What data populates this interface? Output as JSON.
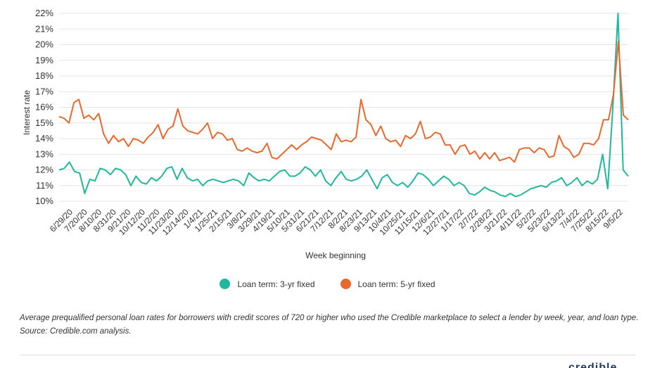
{
  "chart_data": {
    "type": "line",
    "title": "",
    "xlabel": "Week beginning",
    "ylabel": "Interest rate",
    "ylim": [
      10,
      22
    ],
    "y_ticks": [
      "10%",
      "11%",
      "12%",
      "13%",
      "14%",
      "15%",
      "16%",
      "17%",
      "18%",
      "19%",
      "20%",
      "21%",
      "22%"
    ],
    "grid": "horizontal",
    "x_tick_labels": [
      "6/29/20",
      "7/20/20",
      "8/10/20",
      "8/31/20",
      "9/21/20",
      "10/12/20",
      "11/2/20",
      "11/23/20",
      "12/14/20",
      "1/4/21",
      "1/25/21",
      "2/15/21",
      "3/8/21",
      "3/29/21",
      "4/19/21",
      "5/10/21",
      "5/31/21",
      "6/21/21",
      "7/12/21",
      "8/2/21",
      "8/23/21",
      "9/13/21",
      "10/4/21",
      "10/25/21",
      "11/15/21",
      "12/6/21",
      "12/27/21",
      "1/17/22",
      "2/7/22",
      "2/28/22",
      "3/21/22",
      "4/11/22",
      "5/2/22",
      "5/23/22",
      "6/13/22",
      "7/4/22",
      "7/25/22",
      "8/15/22",
      "9/5/22"
    ],
    "series": [
      {
        "name": "Loan term: 3-yr fixed",
        "color": "#1fb89f",
        "values": [
          12.0,
          12.1,
          12.5,
          11.9,
          11.8,
          10.5,
          11.4,
          11.3,
          12.1,
          12.0,
          11.7,
          12.1,
          12.0,
          11.7,
          11.0,
          11.6,
          11.2,
          11.1,
          11.5,
          11.3,
          11.6,
          12.1,
          12.2,
          11.4,
          12.1,
          11.5,
          11.3,
          11.4,
          11.0,
          11.3,
          11.4,
          11.3,
          11.2,
          11.3,
          11.4,
          11.3,
          11.0,
          11.8,
          11.5,
          11.3,
          11.4,
          11.3,
          11.6,
          11.9,
          12.0,
          11.6,
          11.6,
          11.8,
          12.2,
          12.0,
          11.6,
          12.0,
          11.3,
          11.0,
          11.5,
          11.9,
          11.4,
          11.3,
          11.4,
          11.6,
          12.0,
          11.4,
          10.8,
          11.5,
          11.7,
          11.2,
          11.0,
          11.2,
          10.9,
          11.3,
          11.8,
          11.7,
          11.4,
          11.0,
          11.3,
          11.6,
          11.4,
          11.0,
          11.2,
          11.0,
          10.5,
          10.4,
          10.6,
          10.9,
          10.7,
          10.6,
          10.4,
          10.3,
          10.5,
          10.3,
          10.4,
          10.6,
          10.8,
          10.9,
          11.0,
          10.9,
          11.2,
          11.3,
          11.5,
          11.0,
          11.2,
          11.5,
          11.0,
          11.3,
          11.1,
          11.4,
          13.0,
          10.8,
          16.0,
          22.0,
          12.0,
          11.6
        ]
      },
      {
        "name": "Loan term: 5-yr fixed",
        "color": "#e8692e",
        "values": [
          15.4,
          15.3,
          15.0,
          16.3,
          16.5,
          15.3,
          15.5,
          15.2,
          15.6,
          14.3,
          13.7,
          14.2,
          13.8,
          14.0,
          13.5,
          14.0,
          13.9,
          13.7,
          14.1,
          14.4,
          14.9,
          14.0,
          14.6,
          14.8,
          15.9,
          14.8,
          14.5,
          14.4,
          14.3,
          14.6,
          15.0,
          14.0,
          14.4,
          14.3,
          13.9,
          14.0,
          13.3,
          13.2,
          13.4,
          13.2,
          13.1,
          13.2,
          13.7,
          12.8,
          12.7,
          13.0,
          13.3,
          13.6,
          13.3,
          13.6,
          13.8,
          14.1,
          14.0,
          13.9,
          13.6,
          13.3,
          14.3,
          13.8,
          13.9,
          13.8,
          14.1,
          16.5,
          15.2,
          14.9,
          14.2,
          14.8,
          14.0,
          13.8,
          13.9,
          13.5,
          14.2,
          14.0,
          14.3,
          15.1,
          14.0,
          14.1,
          14.4,
          14.3,
          13.6,
          13.6,
          13.0,
          13.5,
          13.6,
          13.0,
          13.2,
          12.7,
          13.1,
          12.7,
          13.1,
          12.6,
          12.7,
          12.8,
          12.5,
          13.3,
          13.4,
          13.4,
          13.1,
          13.4,
          13.3,
          12.8,
          12.9,
          14.2,
          13.5,
          13.3,
          12.8,
          13.0,
          13.7,
          13.7,
          13.6,
          14.0,
          15.2,
          15.2,
          16.8,
          20.2,
          15.5,
          15.2
        ]
      }
    ]
  },
  "legend": {
    "items": [
      {
        "label": "Loan term: 3-yr fixed",
        "color": "#1fb89f"
      },
      {
        "label": "Loan term: 5-yr fixed",
        "color": "#e8692e"
      }
    ]
  },
  "caption": "Average prequalified personal loan rates for borrowers with credit scores of 720 or higher who used the Credible marketplace to select a lender by week, year, and loan type. Source: Credible.com analysis.",
  "logo_text": "credible"
}
